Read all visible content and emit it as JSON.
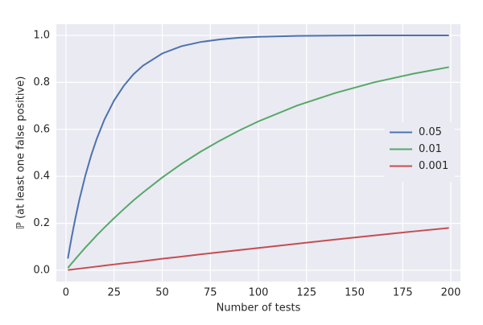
{
  "chart_data": {
    "type": "line",
    "xlabel": "Number of tests",
    "ylabel": "ℙ (at least one false positive)",
    "x": [
      1,
      2,
      3,
      4,
      5,
      7,
      10,
      13,
      16,
      20,
      25,
      30,
      35,
      40,
      50,
      60,
      70,
      80,
      90,
      100,
      120,
      140,
      160,
      180,
      199
    ],
    "series": [
      {
        "name": "0.05",
        "color": "#4c72b0",
        "values": [
          0.05,
          0.098,
          0.143,
          0.185,
          0.226,
          0.302,
          0.401,
          0.487,
          0.56,
          0.642,
          0.723,
          0.785,
          0.834,
          0.871,
          0.923,
          0.954,
          0.972,
          0.983,
          0.99,
          0.994,
          0.998,
          0.999,
          1.0,
          1.0,
          1.0
        ]
      },
      {
        "name": "0.01",
        "color": "#55a868",
        "values": [
          0.01,
          0.02,
          0.03,
          0.039,
          0.049,
          0.068,
          0.096,
          0.122,
          0.149,
          0.182,
          0.222,
          0.26,
          0.297,
          0.331,
          0.395,
          0.453,
          0.505,
          0.552,
          0.595,
          0.634,
          0.701,
          0.755,
          0.8,
          0.836,
          0.865
        ]
      },
      {
        "name": "0.001",
        "color": "#c44e52",
        "values": [
          0.001,
          0.002,
          0.003,
          0.004,
          0.005,
          0.007,
          0.01,
          0.013,
          0.016,
          0.02,
          0.025,
          0.03,
          0.034,
          0.039,
          0.049,
          0.058,
          0.068,
          0.077,
          0.086,
          0.095,
          0.113,
          0.131,
          0.148,
          0.165,
          0.18
        ]
      }
    ],
    "xlim": [
      -5,
      205
    ],
    "ylim": [
      -0.048,
      1.048
    ],
    "xticks": [
      0,
      25,
      50,
      75,
      100,
      125,
      150,
      175,
      200
    ],
    "yticks": [
      {
        "value": 0,
        "label": "0.0"
      },
      {
        "value": 0.2,
        "label": "0.2"
      },
      {
        "value": 0.4,
        "label": "0.4"
      },
      {
        "value": 0.6,
        "label": "0.6"
      },
      {
        "value": 0.8,
        "label": "0.8"
      },
      {
        "value": 1,
        "label": "1.0"
      }
    ],
    "grid": true,
    "legend": "center right"
  }
}
